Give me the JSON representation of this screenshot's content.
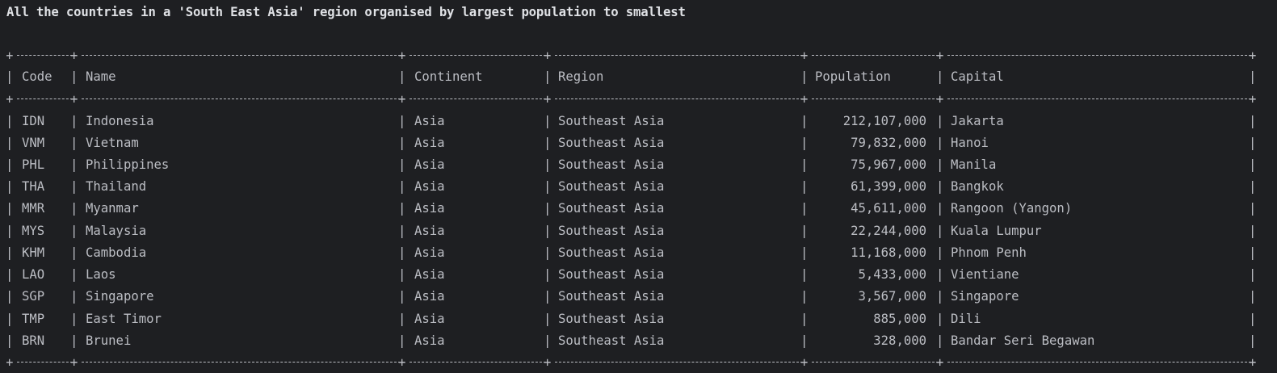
{
  "heading": "All the countries in a 'South East Asia' region organised by largest population to smallest",
  "table": {
    "columns": [
      "Code",
      "Name",
      "Continent",
      "Region",
      "Population",
      "Capital"
    ],
    "rows": [
      [
        "IDN",
        "Indonesia",
        "Asia",
        "Southeast Asia",
        "212,107,000",
        "Jakarta"
      ],
      [
        "VNM",
        "Vietnam",
        "Asia",
        "Southeast Asia",
        "79,832,000",
        "Hanoi"
      ],
      [
        "PHL",
        "Philippines",
        "Asia",
        "Southeast Asia",
        "75,967,000",
        "Manila"
      ],
      [
        "THA",
        "Thailand",
        "Asia",
        "Southeast Asia",
        "61,399,000",
        "Bangkok"
      ],
      [
        "MMR",
        "Myanmar",
        "Asia",
        "Southeast Asia",
        "45,611,000",
        "Rangoon (Yangon)"
      ],
      [
        "MYS",
        "Malaysia",
        "Asia",
        "Southeast Asia",
        "22,244,000",
        "Kuala Lumpur"
      ],
      [
        "KHM",
        "Cambodia",
        "Asia",
        "Southeast Asia",
        "11,168,000",
        "Phnom Penh"
      ],
      [
        "LAO",
        "Laos",
        "Asia",
        "Southeast Asia",
        "5,433,000",
        "Vientiane"
      ],
      [
        "SGP",
        "Singapore",
        "Asia",
        "Southeast Asia",
        "3,567,000",
        "Singapore"
      ],
      [
        "TMP",
        "East Timor",
        "Asia",
        "Southeast Asia",
        "885,000",
        "Dili"
      ],
      [
        "BRN",
        "Brunei",
        "Asia",
        "Southeast Asia",
        "328,000",
        "Bandar Seri Begawan"
      ]
    ]
  }
}
